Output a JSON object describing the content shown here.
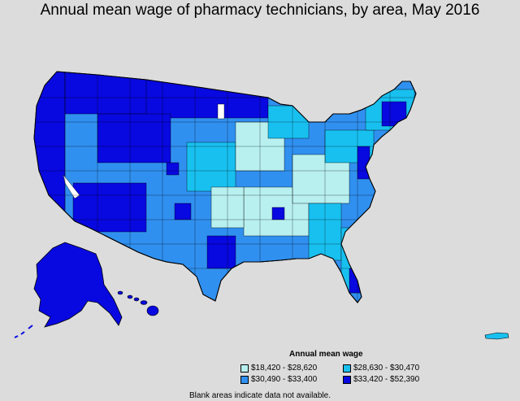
{
  "title": "Annual mean wage of pharmacy technicians, by area, May 2016",
  "legend": {
    "title": "Annual mean wage",
    "items": [
      {
        "label": "$18,420 - $28,620",
        "color": "#b8f0f0"
      },
      {
        "label": "$28,630 - $30,470",
        "color": "#18c0f0"
      },
      {
        "label": "$30,490 - $33,400",
        "color": "#3090f0"
      },
      {
        "label": "$33,420 - $52,390",
        "color": "#0808e0"
      }
    ]
  },
  "footnote": "Blank areas indicate data not available.",
  "colors": {
    "background": "#dcdcdc",
    "no_data": "#ffffff",
    "border": "#000000"
  }
}
